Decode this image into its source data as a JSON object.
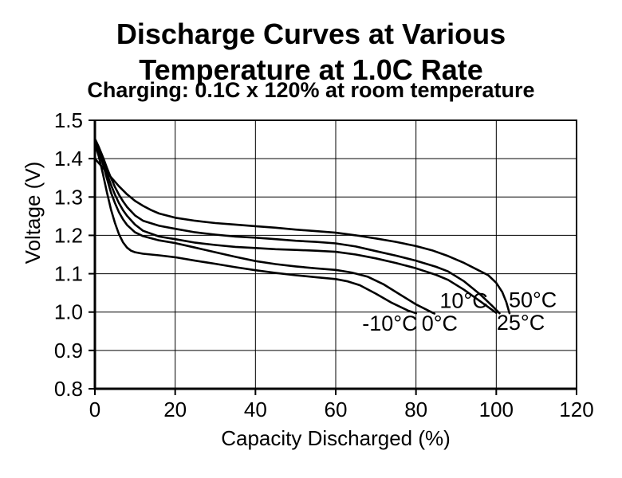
{
  "page": {
    "background": "#ffffff",
    "foreground": "#000000"
  },
  "chart_data": {
    "type": "line",
    "title_line1": "Discharge Curves at Various",
    "title_line2": "Temperature at 1.0C Rate",
    "subtitle": "Charging: 0.1C x 120% at room temperature",
    "xlabel": "Capacity Discharged (%)",
    "ylabel": "Voltage (V)",
    "xlim": [
      0,
      120
    ],
    "ylim": [
      0.8,
      1.5
    ],
    "x_ticks": [
      "0",
      "20",
      "40",
      "60",
      "80",
      "100",
      "120"
    ],
    "y_ticks": [
      "0.8",
      "0.9",
      "1.0",
      "1.1",
      "1.2",
      "1.3",
      "1.4",
      "1.5"
    ],
    "grid": true,
    "legend_position": "none",
    "line_color": "#000000",
    "series": [
      {
        "name": "-10°C",
        "points": [
          [
            0,
            1.44
          ],
          [
            1,
            1.405
          ],
          [
            2,
            1.36
          ],
          [
            3,
            1.312
          ],
          [
            4,
            1.268
          ],
          [
            5,
            1.232
          ],
          [
            6,
            1.203
          ],
          [
            7,
            1.182
          ],
          [
            8,
            1.168
          ],
          [
            9,
            1.16
          ],
          [
            10,
            1.156
          ],
          [
            12,
            1.152
          ],
          [
            16,
            1.148
          ],
          [
            20,
            1.143
          ],
          [
            25,
            1.134
          ],
          [
            30,
            1.126
          ],
          [
            35,
            1.117
          ],
          [
            40,
            1.109
          ],
          [
            45,
            1.102
          ],
          [
            50,
            1.096
          ],
          [
            55,
            1.091
          ],
          [
            60,
            1.086
          ],
          [
            63,
            1.08
          ],
          [
            66,
            1.07
          ],
          [
            70,
            1.048
          ],
          [
            74,
            1.024
          ],
          [
            78,
            1.004
          ],
          [
            80,
            0.997
          ]
        ]
      },
      {
        "name": "0°C",
        "points": [
          [
            0,
            1.446
          ],
          [
            1,
            1.42
          ],
          [
            2,
            1.386
          ],
          [
            3,
            1.348
          ],
          [
            4,
            1.312
          ],
          [
            5,
            1.284
          ],
          [
            6,
            1.26
          ],
          [
            7,
            1.242
          ],
          [
            8,
            1.227
          ],
          [
            10,
            1.208
          ],
          [
            12,
            1.198
          ],
          [
            16,
            1.187
          ],
          [
            20,
            1.18
          ],
          [
            25,
            1.168
          ],
          [
            30,
            1.156
          ],
          [
            35,
            1.144
          ],
          [
            40,
            1.133
          ],
          [
            45,
            1.125
          ],
          [
            50,
            1.119
          ],
          [
            55,
            1.114
          ],
          [
            60,
            1.11
          ],
          [
            64,
            1.103
          ],
          [
            68,
            1.092
          ],
          [
            72,
            1.072
          ],
          [
            76,
            1.046
          ],
          [
            80,
            1.02
          ],
          [
            84,
            0.999
          ],
          [
            84.6,
            0.996
          ]
        ]
      },
      {
        "name": "10°C",
        "points": [
          [
            0,
            1.45
          ],
          [
            1,
            1.426
          ],
          [
            2,
            1.396
          ],
          [
            3,
            1.362
          ],
          [
            4,
            1.332
          ],
          [
            5,
            1.306
          ],
          [
            6,
            1.284
          ],
          [
            7,
            1.266
          ],
          [
            8,
            1.251
          ],
          [
            10,
            1.228
          ],
          [
            12,
            1.212
          ],
          [
            16,
            1.197
          ],
          [
            20,
            1.19
          ],
          [
            25,
            1.181
          ],
          [
            30,
            1.175
          ],
          [
            35,
            1.17
          ],
          [
            40,
            1.167
          ],
          [
            45,
            1.164
          ],
          [
            50,
            1.162
          ],
          [
            55,
            1.16
          ],
          [
            60,
            1.157
          ],
          [
            65,
            1.15
          ],
          [
            70,
            1.14
          ],
          [
            75,
            1.128
          ],
          [
            80,
            1.114
          ],
          [
            85,
            1.097
          ],
          [
            88,
            1.084
          ],
          [
            92,
            1.058
          ],
          [
            96,
            1.028
          ],
          [
            100,
            0.998
          ]
        ]
      },
      {
        "name": "25°C",
        "points": [
          [
            0,
            1.452
          ],
          [
            1,
            1.43
          ],
          [
            2,
            1.404
          ],
          [
            3,
            1.376
          ],
          [
            4,
            1.35
          ],
          [
            5,
            1.326
          ],
          [
            6,
            1.306
          ],
          [
            7,
            1.289
          ],
          [
            8,
            1.274
          ],
          [
            10,
            1.252
          ],
          [
            12,
            1.238
          ],
          [
            16,
            1.225
          ],
          [
            20,
            1.217
          ],
          [
            25,
            1.208
          ],
          [
            30,
            1.202
          ],
          [
            35,
            1.197
          ],
          [
            40,
            1.194
          ],
          [
            45,
            1.19
          ],
          [
            50,
            1.186
          ],
          [
            55,
            1.183
          ],
          [
            60,
            1.179
          ],
          [
            65,
            1.171
          ],
          [
            70,
            1.159
          ],
          [
            75,
            1.147
          ],
          [
            80,
            1.134
          ],
          [
            85,
            1.118
          ],
          [
            88,
            1.106
          ],
          [
            92,
            1.08
          ],
          [
            96,
            1.046
          ],
          [
            99,
            1.016
          ],
          [
            100.8,
            0.997
          ]
        ]
      },
      {
        "name": "50°C",
        "points": [
          [
            0,
            1.4
          ],
          [
            2,
            1.376
          ],
          [
            4,
            1.352
          ],
          [
            6,
            1.328
          ],
          [
            8,
            1.307
          ],
          [
            10,
            1.29
          ],
          [
            12,
            1.277
          ],
          [
            14,
            1.266
          ],
          [
            16,
            1.257
          ],
          [
            20,
            1.246
          ],
          [
            25,
            1.238
          ],
          [
            30,
            1.232
          ],
          [
            35,
            1.228
          ],
          [
            40,
            1.224
          ],
          [
            45,
            1.22
          ],
          [
            50,
            1.215
          ],
          [
            55,
            1.211
          ],
          [
            60,
            1.207
          ],
          [
            65,
            1.2
          ],
          [
            70,
            1.192
          ],
          [
            75,
            1.183
          ],
          [
            80,
            1.172
          ],
          [
            84,
            1.161
          ],
          [
            88,
            1.146
          ],
          [
            92,
            1.128
          ],
          [
            95,
            1.112
          ],
          [
            98,
            1.096
          ],
          [
            100,
            1.076
          ],
          [
            101.5,
            1.052
          ],
          [
            102.5,
            1.026
          ],
          [
            103.3,
            0.997
          ]
        ]
      }
    ],
    "annotations": [
      {
        "text": "-10°C",
        "x": 73.5,
        "y": 0.97
      },
      {
        "text": "0°C",
        "x": 85.9,
        "y": 0.97
      },
      {
        "text": "10°C",
        "x": 91.9,
        "y": 1.03
      },
      {
        "text": "25°C",
        "x": 106.1,
        "y": 0.972
      },
      {
        "text": "50°C",
        "x": 109.1,
        "y": 1.032
      }
    ]
  }
}
